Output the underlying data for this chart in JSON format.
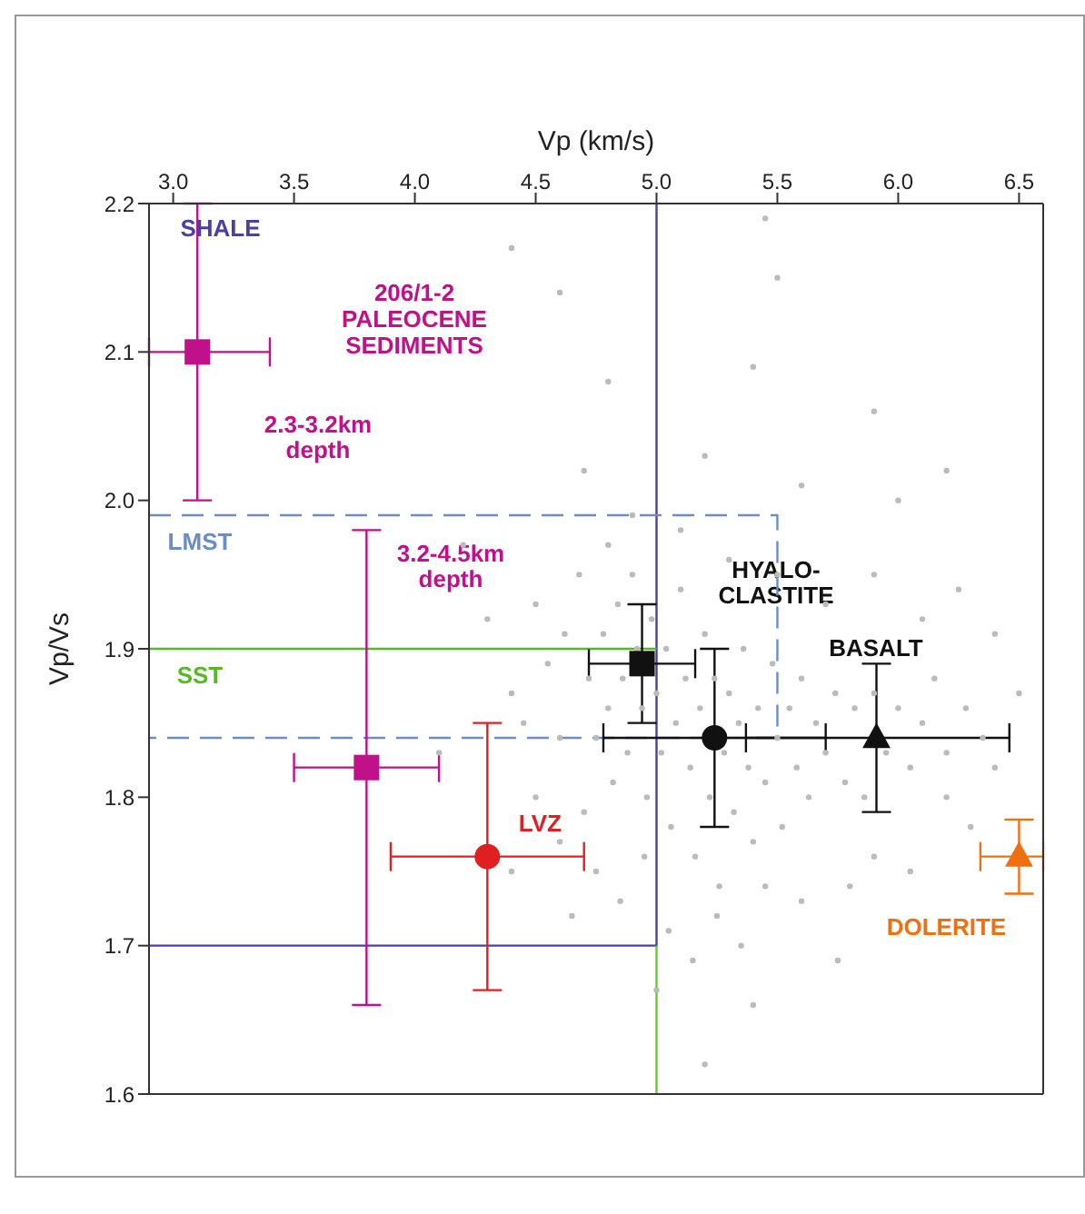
{
  "chart_data": {
    "type": "scatter",
    "xlabel": "Vp (km/s)",
    "ylabel": "Vp/Vs",
    "xlim": [
      2.9,
      6.6
    ],
    "xticks": [
      {
        "value": 3,
        "label": "3.0"
      },
      3.5,
      {
        "value": 4,
        "label": "4.0"
      },
      4.5,
      {
        "value": 5,
        "label": "5.0"
      },
      5.5,
      {
        "value": 6,
        "label": "6.0"
      },
      6.5
    ],
    "ylim": [
      1.6,
      2.2
    ],
    "yticks": [
      1.6,
      1.7,
      1.8,
      1.9,
      {
        "value": 2,
        "label": "2.0"
      },
      2.1,
      2.2
    ],
    "series": [
      {
        "marker": "circle",
        "color": "#bbbbbb",
        "x": [
          4.72,
          4.75,
          4.78,
          4.8,
          4.82,
          4.84,
          4.86,
          4.88,
          4.9,
          4.92,
          4.94,
          4.96,
          4.98,
          5.0,
          5.02,
          5.04,
          5.06,
          5.08,
          5.1,
          5.12,
          5.14,
          5.16,
          5.18,
          5.2,
          5.22,
          5.24,
          5.26,
          5.28,
          5.3,
          5.32,
          5.34,
          5.36,
          5.38,
          5.4,
          5.42,
          5.45,
          5.48,
          5.5,
          5.52,
          5.55,
          5.58,
          5.6,
          5.63,
          5.66,
          5.7,
          5.74,
          5.78,
          5.82,
          5.86,
          5.9,
          5.95,
          6.0,
          6.05,
          6.1,
          6.15,
          6.2,
          6.28,
          6.35,
          4.6,
          4.65,
          4.7,
          4.75,
          4.85,
          4.95,
          5.05,
          5.15,
          5.25,
          5.35,
          5.45,
          5.6,
          5.75,
          5.4,
          5.0,
          5.2,
          4.45,
          4.5,
          4.55,
          4.4,
          4.6,
          4.62,
          4.5,
          4.68,
          4.8,
          4.9,
          5.1,
          5.3,
          5.5,
          5.7,
          5.9,
          6.1,
          6.25,
          6.4,
          4.7,
          5.2,
          5.6,
          6.0,
          4.8,
          5.4,
          5.9,
          4.6,
          5.5,
          4.4,
          5.45,
          6.2,
          4.3,
          4.2,
          4.1,
          4.4,
          6.2,
          6.3,
          6.4,
          6.5,
          5.9,
          6.05,
          5.8
        ],
        "values": [
          1.88,
          1.84,
          1.91,
          1.86,
          1.81,
          1.93,
          1.88,
          1.83,
          1.95,
          1.9,
          1.86,
          1.8,
          1.92,
          1.87,
          1.83,
          1.9,
          1.78,
          1.85,
          1.94,
          1.88,
          1.82,
          1.76,
          1.86,
          1.91,
          1.8,
          1.88,
          1.74,
          1.83,
          1.87,
          1.79,
          1.85,
          1.9,
          1.82,
          1.77,
          1.86,
          1.81,
          1.89,
          1.84,
          1.78,
          1.86,
          1.82,
          1.88,
          1.8,
          1.85,
          1.83,
          1.87,
          1.81,
          1.86,
          1.8,
          1.87,
          1.83,
          1.86,
          1.82,
          1.85,
          1.88,
          1.83,
          1.86,
          1.84,
          1.77,
          1.72,
          1.79,
          1.75,
          1.73,
          1.76,
          1.71,
          1.69,
          1.72,
          1.7,
          1.74,
          1.73,
          1.69,
          1.66,
          1.67,
          1.62,
          1.85,
          1.8,
          1.89,
          1.87,
          1.84,
          1.91,
          1.93,
          1.95,
          1.97,
          1.99,
          1.98,
          1.96,
          1.95,
          1.93,
          1.95,
          1.92,
          1.94,
          1.91,
          2.02,
          2.03,
          2.01,
          2.0,
          2.08,
          2.09,
          2.06,
          2.14,
          2.15,
          2.17,
          2.19,
          2.02,
          1.92,
          1.97,
          1.83,
          1.75,
          1.8,
          1.78,
          1.82,
          1.87,
          1.76,
          1.75,
          1.74
        ]
      },
      {
        "type": "line",
        "name": "SHALE",
        "line_style": "solid",
        "color": "#4a3fa8",
        "x": [
          5.0,
          5.0,
          2.9
        ],
        "values": [
          2.2,
          1.7,
          1.7
        ]
      },
      {
        "type": "line",
        "name": "SST",
        "line_style": "solid",
        "color": "#55bb22",
        "x": [
          2.9,
          5.0
        ],
        "values": [
          1.9,
          1.9
        ]
      },
      {
        "type": "line",
        "line_style": "solid",
        "color": "#66cc22",
        "x": [
          5.0,
          5.0
        ],
        "values": [
          1.7,
          1.6
        ]
      },
      {
        "type": "line",
        "name": "LMST",
        "line_style": "dashed",
        "color": "#6a8cc8",
        "x": [
          2.9,
          5.5,
          5.5,
          2.9
        ],
        "values": [
          1.99,
          1.99,
          1.84,
          1.84
        ]
      },
      {
        "marker": "square",
        "color": "#c0108a",
        "x": [
          3.1
        ],
        "values": [
          2.1
        ],
        "errors": [
          [
            2.0,
            2.2
          ]
        ],
        "xerrors": [
          [
            2.9,
            3.4
          ]
        ]
      },
      {
        "marker": "square",
        "color": "#c0108a",
        "x": [
          3.8
        ],
        "values": [
          1.82
        ],
        "errors": [
          [
            1.66,
            1.98
          ]
        ],
        "xerrors": [
          [
            3.5,
            4.1
          ]
        ]
      },
      {
        "name": "LVZ",
        "marker": "circle",
        "color": "#e02020",
        "x": [
          4.3
        ],
        "values": [
          1.76
        ],
        "errors": [
          [
            1.67,
            1.85
          ]
        ],
        "xerrors": [
          [
            3.9,
            4.7
          ]
        ]
      },
      {
        "marker": "square",
        "color": "#111111",
        "x": [
          4.94
        ],
        "values": [
          1.89
        ],
        "errors": [
          [
            1.85,
            1.93
          ]
        ],
        "xerrors": [
          [
            4.72,
            5.16
          ]
        ]
      },
      {
        "marker": "circle",
        "color": "#111111",
        "x": [
          5.24
        ],
        "values": [
          1.84
        ],
        "errors": [
          [
            1.78,
            1.9
          ]
        ],
        "xerrors": [
          [
            4.78,
            5.7
          ]
        ]
      },
      {
        "marker": "triangle",
        "color": "#111111",
        "x": [
          5.91
        ],
        "values": [
          1.84
        ],
        "errors": [
          [
            1.79,
            1.89
          ]
        ],
        "xerrors": [
          [
            5.37,
            6.46
          ]
        ]
      },
      {
        "name": "DOLERITE",
        "marker": "triangle",
        "color": "#f07010",
        "x": [
          6.5
        ],
        "values": [
          1.76
        ],
        "errors": [
          [
            1.735,
            1.785
          ]
        ],
        "xerrors": [
          [
            6.34,
            6.6
          ]
        ]
      }
    ],
    "annotations": [
      "206/1-2\nPALEOCENE\nSEDIMENTS",
      "2.3-3.2km\ndepth",
      "3.2-4.5km\ndepth",
      "HYALO-\nCLASTITE",
      "BASALT"
    ]
  }
}
